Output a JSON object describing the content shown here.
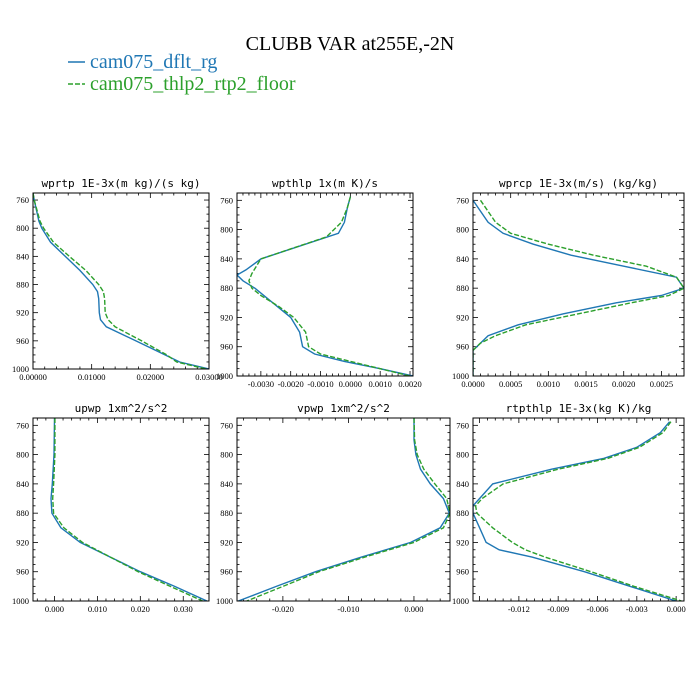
{
  "figure": {
    "title": "CLUBB VAR at255E,-2N",
    "legend": [
      {
        "label": "cam075_dflt_rg",
        "color": "#1f77b4",
        "style": "solid"
      },
      {
        "label": "cam075_thlp2_rtp2_floor",
        "color": "#2ca02c",
        "style": "dashed"
      }
    ]
  },
  "chart_data": [
    {
      "type": "line",
      "title": "wprtp  1E-3x(m kg)/(s kg)",
      "xlim": [
        0.0,
        0.03
      ],
      "ylim": [
        1000,
        750
      ],
      "xticks": [
        0.0,
        0.01,
        0.02,
        0.03
      ],
      "xticklabels": [
        "0.00000",
        "0.01000",
        "0.02000",
        "0.03000"
      ],
      "yticks": [
        760,
        800,
        840,
        880,
        920,
        960,
        1000
      ],
      "series": [
        {
          "name": "cam075_dflt_rg",
          "y": [
            750,
            760,
            790,
            800,
            820,
            840,
            860,
            880,
            890,
            900,
            920,
            930,
            940,
            960,
            980,
            990,
            1000
          ],
          "x": [
            0.0,
            0.0002,
            0.001,
            0.0015,
            0.003,
            0.0055,
            0.008,
            0.0102,
            0.011,
            0.0112,
            0.0113,
            0.0115,
            0.0125,
            0.0175,
            0.0225,
            0.025,
            0.03
          ]
        },
        {
          "name": "cam075_thlp2_rtp2_floor",
          "y": [
            750,
            760,
            790,
            800,
            820,
            840,
            860,
            880,
            890,
            900,
            920,
            930,
            940,
            960,
            980,
            990,
            1000
          ],
          "x": [
            0.0,
            0.0002,
            0.0012,
            0.0018,
            0.0035,
            0.0062,
            0.009,
            0.0112,
            0.012,
            0.0122,
            0.0123,
            0.0128,
            0.014,
            0.0185,
            0.0228,
            0.0245,
            0.0295
          ]
        }
      ]
    },
    {
      "type": "line",
      "title": "wpthlp  1x(m K)/s",
      "xlim": [
        -0.0038,
        0.0021
      ],
      "ylim": [
        1000,
        750
      ],
      "xticks": [
        -0.003,
        -0.002,
        -0.001,
        0.0,
        0.001,
        0.002
      ],
      "xticklabels": [
        "-0.0030",
        "-0.0020",
        "-0.0010",
        "0.0000",
        "0.0010",
        "0.0020"
      ],
      "yticks": [
        760,
        800,
        840,
        880,
        920,
        960,
        1000
      ],
      "series": [
        {
          "name": "cam075_dflt_rg",
          "y": [
            755,
            770,
            790,
            805,
            840,
            855,
            862,
            870,
            880,
            900,
            920,
            940,
            960,
            970,
            980,
            990,
            1000
          ],
          "x": [
            0.0,
            -0.0001,
            -0.0002,
            -0.0004,
            -0.003,
            -0.0035,
            -0.0038,
            -0.0036,
            -0.0032,
            -0.0026,
            -0.002,
            -0.0017,
            -0.0016,
            -0.0012,
            -0.0002,
            0.001,
            0.0021
          ]
        },
        {
          "name": "cam075_thlp2_rtp2_floor",
          "y": [
            755,
            770,
            790,
            810,
            840,
            860,
            870,
            880,
            890,
            905,
            920,
            940,
            960,
            970,
            980,
            990,
            1000
          ],
          "x": [
            0.0,
            -0.0001,
            -0.0003,
            -0.0008,
            -0.003,
            -0.0033,
            -0.0034,
            -0.0033,
            -0.003,
            -0.0024,
            -0.0019,
            -0.0015,
            -0.0014,
            -0.001,
            0.0,
            0.001,
            0.002
          ]
        }
      ]
    },
    {
      "type": "line",
      "title": "wprcp  1E-3x(m/s) (kg/kg)",
      "xlim": [
        0.0,
        0.0028
      ],
      "ylim": [
        1000,
        750
      ],
      "xticks": [
        0.0,
        0.0005,
        0.001,
        0.0015,
        0.002,
        0.0025
      ],
      "xticklabels": [
        "0.0000",
        "0.0005",
        "0.0010",
        "0.0015",
        "0.0020",
        "0.0025"
      ],
      "yticks": [
        760,
        800,
        840,
        880,
        920,
        960,
        1000
      ],
      "series": [
        {
          "name": "cam075_dflt_rg",
          "y": [
            760,
            790,
            805,
            820,
            835,
            850,
            865,
            880,
            890,
            900,
            915,
            930,
            945,
            955,
            965,
            980,
            1000
          ],
          "x": [
            0.0,
            0.0002,
            0.0004,
            0.0008,
            0.0013,
            0.002,
            0.0027,
            0.0028,
            0.0025,
            0.0019,
            0.0012,
            0.0006,
            0.0002,
            0.0001,
            0.0,
            0.0,
            0.0
          ]
        },
        {
          "name": "cam075_thlp2_rtp2_floor",
          "y": [
            760,
            790,
            805,
            820,
            835,
            850,
            865,
            880,
            890,
            900,
            915,
            930,
            945,
            955,
            965,
            980,
            1000
          ],
          "x": [
            0.0001,
            0.0003,
            0.0005,
            0.001,
            0.0016,
            0.0023,
            0.0027,
            0.0028,
            0.0026,
            0.0021,
            0.0014,
            0.0007,
            0.0003,
            0.0001,
            0.0,
            0.0,
            0.0
          ]
        }
      ]
    },
    {
      "type": "line",
      "title": "upwp  1xm^2/s^2",
      "xlim": [
        -0.005,
        0.036
      ],
      "ylim": [
        1000,
        750
      ],
      "xticks": [
        0.0,
        0.01,
        0.02,
        0.03
      ],
      "xticklabels": [
        "0.000",
        "0.010",
        "0.020",
        "0.030"
      ],
      "yticks": [
        760,
        800,
        840,
        880,
        920,
        960,
        1000
      ],
      "series": [
        {
          "name": "cam075_dflt_rg",
          "y": [
            750,
            800,
            840,
            860,
            880,
            900,
            920,
            940,
            960,
            980,
            1000
          ],
          "x": [
            0.0,
            -0.0001,
            -0.0005,
            -0.0008,
            -0.0006,
            0.0015,
            0.006,
            0.013,
            0.02,
            0.028,
            0.0355
          ]
        },
        {
          "name": "cam075_thlp2_rtp2_floor",
          "y": [
            750,
            800,
            840,
            860,
            880,
            900,
            920,
            940,
            960,
            980,
            1000
          ],
          "x": [
            0.0001,
            0.0001,
            -0.0002,
            -0.0004,
            -0.0002,
            0.0022,
            0.0065,
            0.013,
            0.0195,
            0.027,
            0.0345
          ]
        }
      ]
    },
    {
      "type": "line",
      "title": "vpwp  1xm^2/s^2",
      "xlim": [
        -0.027,
        0.0055
      ],
      "ylim": [
        1000,
        750
      ],
      "xticks": [
        -0.02,
        -0.01,
        0.0
      ],
      "xticklabels": [
        "-0.020",
        "-0.010",
        "0.000"
      ],
      "yticks": [
        760,
        800,
        840,
        880,
        920,
        960,
        1000
      ],
      "series": [
        {
          "name": "cam075_dflt_rg",
          "y": [
            750,
            780,
            800,
            820,
            840,
            860,
            880,
            900,
            920,
            940,
            960,
            980,
            1000
          ],
          "x": [
            0.0,
            0.0,
            0.0003,
            0.001,
            0.0025,
            0.0045,
            0.0054,
            0.004,
            -0.0005,
            -0.008,
            -0.015,
            -0.021,
            -0.0268
          ]
        },
        {
          "name": "cam075_thlp2_rtp2_floor",
          "y": [
            750,
            780,
            800,
            820,
            840,
            860,
            880,
            900,
            920,
            940,
            960,
            980,
            1000
          ],
          "x": [
            0.0,
            0.0001,
            0.0005,
            0.0015,
            0.0032,
            0.005,
            0.0055,
            0.0045,
            0.0,
            -0.0075,
            -0.0145,
            -0.02,
            -0.0255
          ]
        }
      ]
    },
    {
      "type": "line",
      "title": "rtpthlp  1E-3x(kg K)/kg",
      "xlim": [
        -0.0155,
        0.0006
      ],
      "ylim": [
        1000,
        750
      ],
      "xticks": [
        -0.012,
        -0.009,
        -0.006,
        -0.003,
        0.0
      ],
      "xticklabels": [
        "-0.012",
        "-0.009",
        "-0.006",
        "-0.003",
        "0.000"
      ],
      "yticks": [
        760,
        800,
        840,
        880,
        920,
        960,
        1000
      ],
      "series": [
        {
          "name": "cam075_dflt_rg",
          "y": [
            755,
            770,
            790,
            805,
            820,
            840,
            860,
            870,
            880,
            900,
            920,
            930,
            940,
            960,
            980,
            1000
          ],
          "x": [
            -0.0005,
            -0.0012,
            -0.003,
            -0.0055,
            -0.0095,
            -0.014,
            -0.015,
            -0.0155,
            -0.0155,
            -0.015,
            -0.0145,
            -0.0135,
            -0.011,
            -0.007,
            -0.0035,
            0.0
          ]
        },
        {
          "name": "cam075_thlp2_rtp2_floor",
          "y": [
            755,
            770,
            790,
            805,
            820,
            840,
            860,
            870,
            880,
            900,
            920,
            930,
            940,
            960,
            980,
            1000
          ],
          "x": [
            -0.0004,
            -0.001,
            -0.0028,
            -0.0052,
            -0.009,
            -0.0132,
            -0.0148,
            -0.0153,
            -0.0152,
            -0.014,
            -0.0125,
            -0.0115,
            -0.01,
            -0.0065,
            -0.0032,
            0.0004
          ]
        }
      ]
    }
  ]
}
